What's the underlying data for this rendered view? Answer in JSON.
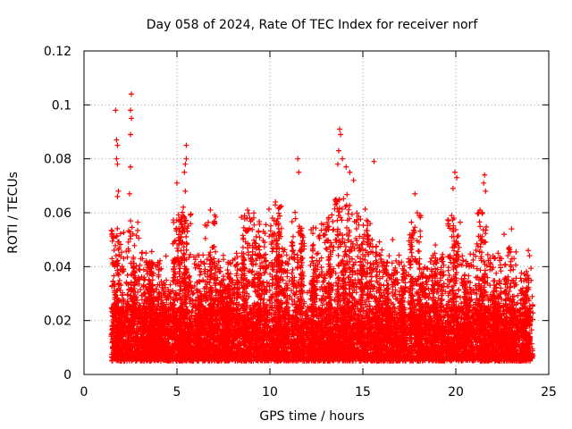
{
  "chart_data": {
    "type": "scatter",
    "title": "Day 058 of 2024, Rate Of TEC Index for receiver norf",
    "xlabel": "GPS time / hours",
    "ylabel": "ROTI / TECUs",
    "xlim": [
      0,
      25
    ],
    "ylim": [
      0,
      0.12
    ],
    "xticks": [
      "0",
      "5",
      "10",
      "15",
      "20",
      "25"
    ],
    "yticks": [
      "0",
      "0.02",
      "0.04",
      "0.06",
      "0.08",
      "0.1",
      "0.12"
    ],
    "grid": true,
    "marker": "+",
    "series_color": "#ff0000",
    "time_range_hours": [
      1.5,
      24.0
    ],
    "baseline_roti_range": [
      0.005,
      0.025
    ],
    "peaks": [
      {
        "x": 1.7,
        "y": 0.098
      },
      {
        "x": 1.75,
        "y": 0.087
      },
      {
        "x": 1.8,
        "y": 0.085
      },
      {
        "x": 1.75,
        "y": 0.08
      },
      {
        "x": 1.8,
        "y": 0.078
      },
      {
        "x": 1.85,
        "y": 0.068
      },
      {
        "x": 1.8,
        "y": 0.066
      },
      {
        "x": 2.55,
        "y": 0.104
      },
      {
        "x": 2.5,
        "y": 0.098
      },
      {
        "x": 2.55,
        "y": 0.095
      },
      {
        "x": 2.5,
        "y": 0.089
      },
      {
        "x": 2.5,
        "y": 0.077
      },
      {
        "x": 2.45,
        "y": 0.067
      },
      {
        "x": 5.5,
        "y": 0.085
      },
      {
        "x": 5.5,
        "y": 0.08
      },
      {
        "x": 5.45,
        "y": 0.078
      },
      {
        "x": 5.4,
        "y": 0.075
      },
      {
        "x": 5.45,
        "y": 0.068
      },
      {
        "x": 5.0,
        "y": 0.071
      },
      {
        "x": 11.5,
        "y": 0.08
      },
      {
        "x": 11.55,
        "y": 0.075
      },
      {
        "x": 13.75,
        "y": 0.091
      },
      {
        "x": 13.8,
        "y": 0.089
      },
      {
        "x": 13.7,
        "y": 0.083
      },
      {
        "x": 13.9,
        "y": 0.08
      },
      {
        "x": 13.65,
        "y": 0.078
      },
      {
        "x": 14.1,
        "y": 0.077
      },
      {
        "x": 15.6,
        "y": 0.079
      },
      {
        "x": 19.95,
        "y": 0.075
      },
      {
        "x": 20.05,
        "y": 0.073
      },
      {
        "x": 19.85,
        "y": 0.069
      },
      {
        "x": 21.55,
        "y": 0.074
      },
      {
        "x": 21.5,
        "y": 0.071
      },
      {
        "x": 21.6,
        "y": 0.068
      },
      {
        "x": 17.8,
        "y": 0.067
      },
      {
        "x": 14.5,
        "y": 0.072
      },
      {
        "x": 14.3,
        "y": 0.075
      },
      {
        "x": 10.3,
        "y": 0.064
      },
      {
        "x": 6.8,
        "y": 0.061
      },
      {
        "x": 8.8,
        "y": 0.061
      },
      {
        "x": 23.0,
        "y": 0.054
      },
      {
        "x": 22.6,
        "y": 0.052
      },
      {
        "x": 23.9,
        "y": 0.046
      },
      {
        "x": 18.9,
        "y": 0.048
      },
      {
        "x": 16.6,
        "y": 0.05
      }
    ],
    "activity_bursts": [
      {
        "x": 1.8,
        "max": 0.055
      },
      {
        "x": 2.6,
        "max": 0.057
      },
      {
        "x": 3.3,
        "max": 0.046
      },
      {
        "x": 3.7,
        "max": 0.043
      },
      {
        "x": 4.3,
        "max": 0.035
      },
      {
        "x": 5.1,
        "max": 0.063
      },
      {
        "x": 5.5,
        "max": 0.06
      },
      {
        "x": 6.3,
        "max": 0.045
      },
      {
        "x": 6.8,
        "max": 0.06
      },
      {
        "x": 7.4,
        "max": 0.042
      },
      {
        "x": 8.0,
        "max": 0.044
      },
      {
        "x": 8.8,
        "max": 0.06
      },
      {
        "x": 9.5,
        "max": 0.058
      },
      {
        "x": 10.3,
        "max": 0.063
      },
      {
        "x": 10.7,
        "max": 0.048
      },
      {
        "x": 11.5,
        "max": 0.062
      },
      {
        "x": 12.5,
        "max": 0.055
      },
      {
        "x": 13.1,
        "max": 0.06
      },
      {
        "x": 13.8,
        "max": 0.068
      },
      {
        "x": 14.4,
        "max": 0.064
      },
      {
        "x": 15.1,
        "max": 0.062
      },
      {
        "x": 15.7,
        "max": 0.05
      },
      {
        "x": 16.4,
        "max": 0.042
      },
      {
        "x": 17.0,
        "max": 0.044
      },
      {
        "x": 17.8,
        "max": 0.06
      },
      {
        "x": 18.3,
        "max": 0.04
      },
      {
        "x": 19.0,
        "max": 0.045
      },
      {
        "x": 19.9,
        "max": 0.059
      },
      {
        "x": 20.6,
        "max": 0.045
      },
      {
        "x": 21.4,
        "max": 0.061
      },
      {
        "x": 22.1,
        "max": 0.045
      },
      {
        "x": 22.9,
        "max": 0.048
      },
      {
        "x": 23.8,
        "max": 0.04
      }
    ]
  }
}
